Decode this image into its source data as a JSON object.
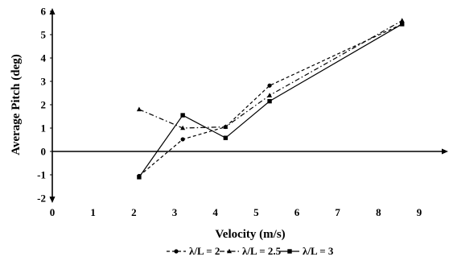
{
  "chart_data": {
    "type": "line",
    "title": "",
    "xlabel": "Velocity (m/s)",
    "ylabel": "Average Pitch (deg)",
    "xlim": [
      0,
      9
    ],
    "ylim": [
      -2,
      6
    ],
    "x_ticks": [
      "0",
      "1",
      "2",
      "3",
      "4",
      "5",
      "6",
      "7",
      "8",
      "9"
    ],
    "y_ticks": [
      "6",
      "5",
      "4",
      "3",
      "2",
      "1",
      "0",
      "-1",
      "-2"
    ],
    "grid": false,
    "legend_position": "bottom",
    "series": [
      {
        "name": "λ/L = 2",
        "marker": "circle",
        "line_style": "dashed",
        "color": "#000000",
        "x": [
          2.13,
          3.2,
          4.25,
          5.33,
          8.58
        ],
        "y": [
          -1.05,
          0.52,
          1.05,
          2.82,
          5.45
        ]
      },
      {
        "name": "λ/L = 2.5",
        "marker": "triangle",
        "line_style": "dash-dot",
        "color": "#000000",
        "x": [
          2.13,
          3.2,
          4.25,
          5.33,
          8.58
        ],
        "y": [
          1.8,
          1.0,
          1.05,
          2.4,
          5.6
        ]
      },
      {
        "name": "λ/L = 3",
        "marker": "square",
        "line_style": "solid",
        "color": "#000000",
        "x": [
          2.13,
          3.2,
          4.25,
          5.33,
          8.58
        ],
        "y": [
          -1.1,
          1.55,
          0.58,
          2.15,
          5.45
        ]
      }
    ]
  }
}
